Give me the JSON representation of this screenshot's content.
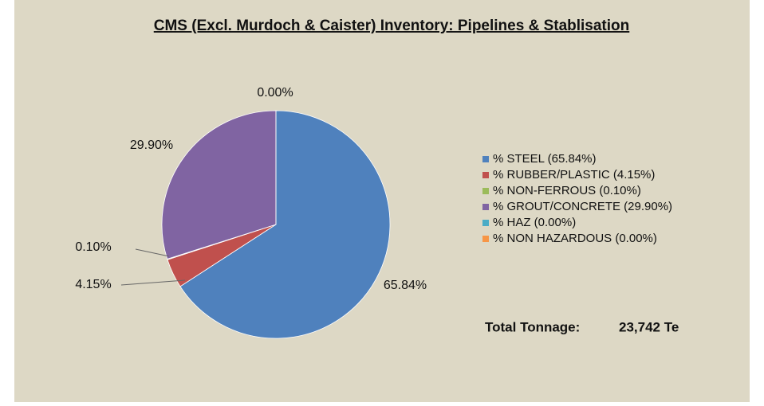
{
  "chart_data": {
    "type": "pie",
    "title": "CMS (Excl. Murdoch & Caister) Inventory: Pipelines & Stablisation",
    "categories": [
      "% STEEL (65.84%)",
      "% RUBBER/PLASTIC (4.15%)",
      "% NON-FERROUS (0.10%)",
      "% GROUT/CONCRETE (29.90%)",
      "% HAZ (0.00%)",
      "% NON HAZARDOUS (0.00%)"
    ],
    "values": [
      65.84,
      4.15,
      0.1,
      29.9,
      0.0,
      0.0
    ],
    "value_labels": [
      "65.84%",
      "4.15%",
      "0.10%",
      "29.90%",
      "0.00%",
      null
    ],
    "colors": [
      "#4f81bd",
      "#c0504d",
      "#9bbb59",
      "#8064a2",
      "#4bacc6",
      "#f79646"
    ],
    "legend": "right",
    "annotations": [
      {
        "label": "Total Tonnage:",
        "value": "23,742 Te"
      }
    ]
  }
}
